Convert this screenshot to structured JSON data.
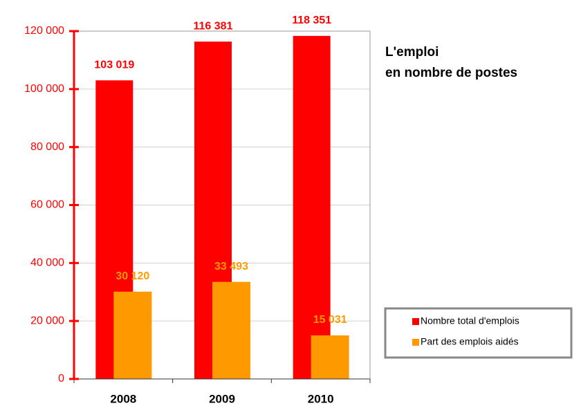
{
  "chart_data": {
    "type": "bar",
    "title": "L'emploi",
    "subtitle": "en nombre de postes",
    "categories": [
      "2008",
      "2009",
      "2010"
    ],
    "series": [
      {
        "name": "Nombre total d'emplois",
        "color": "#ff0000",
        "values": [
          103019,
          116381,
          118351
        ],
        "value_labels": [
          "103 019",
          "116 381",
          "118 351"
        ]
      },
      {
        "name": "Part des emplois aidés",
        "color": "#ff9900",
        "values": [
          30120,
          33493,
          15031
        ],
        "value_labels": [
          "30 120",
          "33 493",
          "15 031"
        ]
      }
    ],
    "ylim": [
      0,
      120000
    ],
    "yticks": [
      {
        "value": 0,
        "label": "0"
      },
      {
        "value": 20000,
        "label": "20 000"
      },
      {
        "value": 40000,
        "label": "40 000"
      },
      {
        "value": 60000,
        "label": "60 000"
      },
      {
        "value": 80000,
        "label": "80 000"
      },
      {
        "value": 100000,
        "label": "100 000"
      },
      {
        "value": 120000,
        "label": "120 000"
      }
    ],
    "grid": true,
    "legend": "right"
  }
}
